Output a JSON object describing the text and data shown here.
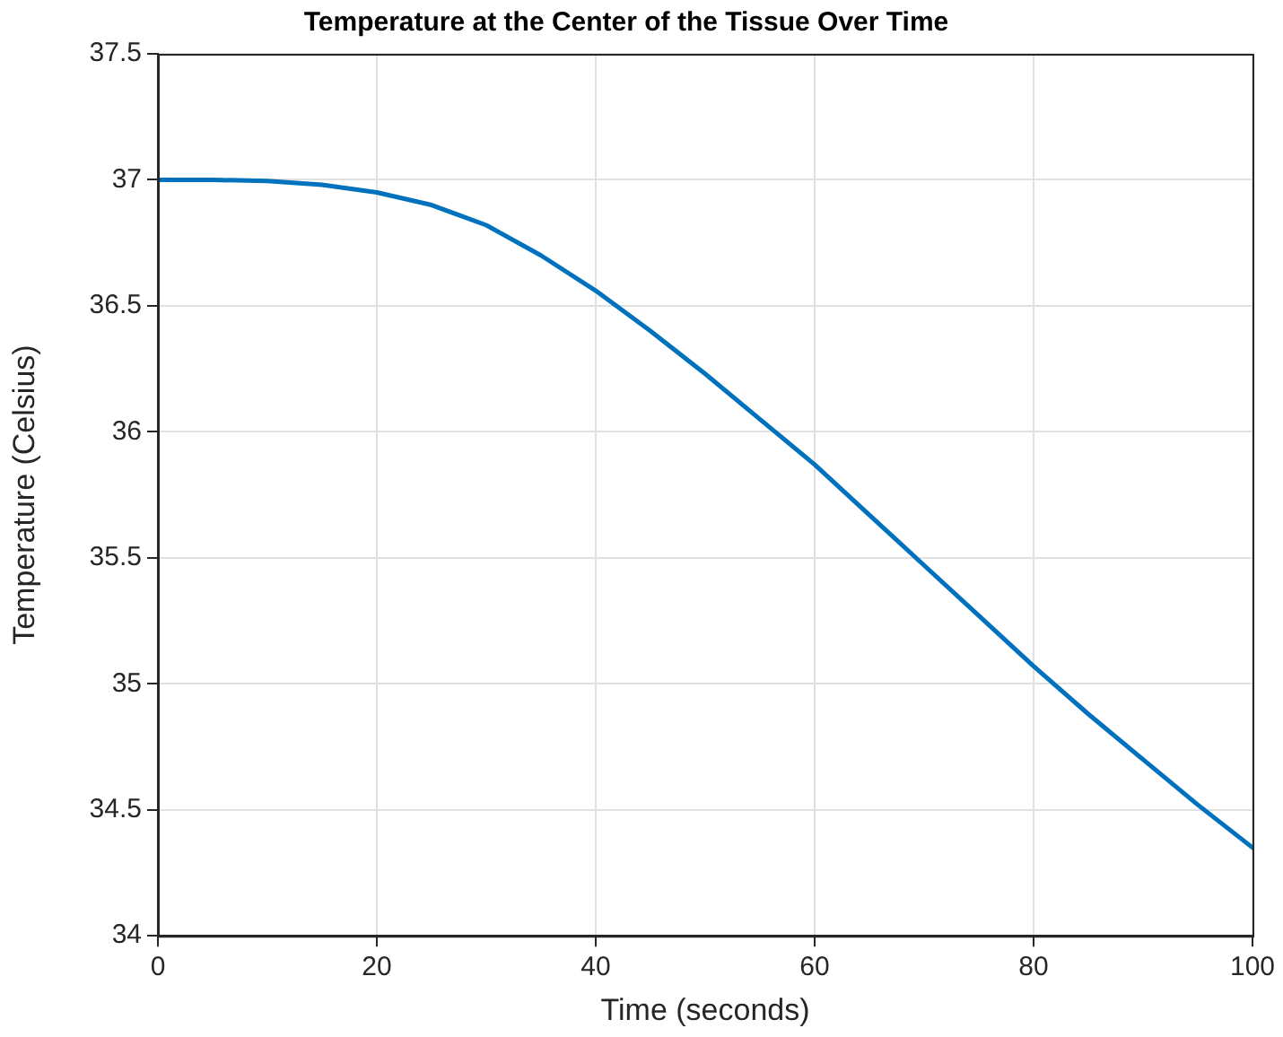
{
  "chart_data": {
    "type": "line",
    "title": "Temperature at the Center of the Tissue Over Time",
    "xlabel": "Time (seconds)",
    "ylabel": "Temperature (Celsius)",
    "x": [
      0,
      5,
      10,
      15,
      20,
      25,
      30,
      35,
      40,
      45,
      50,
      55,
      60,
      65,
      70,
      75,
      80,
      85,
      90,
      95,
      100
    ],
    "series": [
      {
        "color": "#0072bd",
        "values": [
          37,
          37,
          36.995,
          36.98,
          36.95,
          36.9,
          36.82,
          36.7,
          36.56,
          36.4,
          36.23,
          36.05,
          35.87,
          35.67,
          35.47,
          35.27,
          35.07,
          34.88,
          34.7,
          34.52,
          34.35
        ]
      }
    ],
    "xlim": [
      0,
      100
    ],
    "xticks": [
      0,
      20,
      40,
      60,
      80,
      100
    ],
    "ylim": [
      34,
      37.5
    ],
    "yticks": [
      34,
      34.5,
      35,
      35.5,
      36,
      36.5,
      37,
      37.5
    ],
    "grid": true,
    "legend": false,
    "marker": "none",
    "line_style": "solid"
  }
}
